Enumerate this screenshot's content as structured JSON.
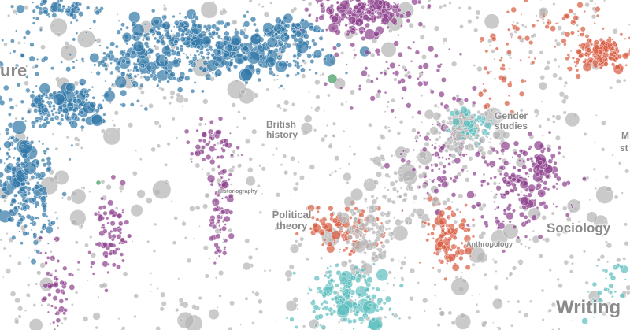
{
  "labels": [
    "ure",
    "British history",
    "Historiography",
    "Political theory",
    "Gender studies",
    "Sociology",
    "Anthropology",
    "Writing",
    "M",
    "st"
  ]
}
